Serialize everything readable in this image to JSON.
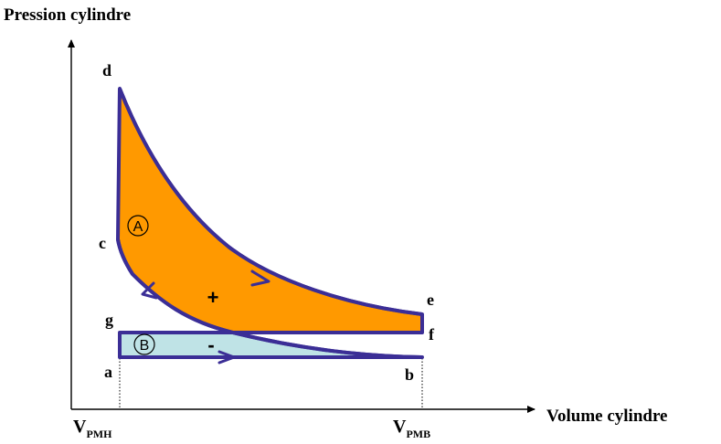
{
  "axes": {
    "y_label": "Pression cylindre",
    "x_label": "Volume cylindre"
  },
  "points": {
    "a": "a",
    "b": "b",
    "c": "c",
    "d": "d",
    "e": "e",
    "f": "f",
    "g": "g"
  },
  "ticks": {
    "pmh_main": "V",
    "pmh_sub": "PMH",
    "pmb_main": "V",
    "pmb_sub": "PMB"
  },
  "areas": {
    "a_marker": "A",
    "b_marker": "B",
    "plus": "+",
    "minus": "-"
  },
  "colors": {
    "work_loop": "#FF9900",
    "pump_loop": "#BFE3E6",
    "outline": "#3B2E96",
    "axis": "#000000"
  }
}
